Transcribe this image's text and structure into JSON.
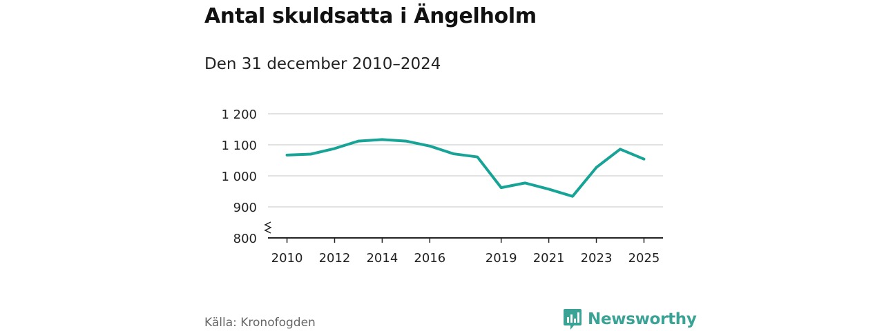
{
  "header": {
    "title": "Antal skuldsatta i Ängelholm",
    "subtitle": "Den 31 december 2010–2024"
  },
  "footer": {
    "source": "Källa: Kronofogden",
    "brand": "Newsworthy"
  },
  "colors": {
    "line": "#17a396",
    "grid": "#d9d9d9",
    "axis": "#222222",
    "brand": "#3aa396"
  },
  "chart_data": {
    "type": "line",
    "title": "Antal skuldsatta i Ängelholm",
    "subtitle": "Den 31 december 2010–2024",
    "xlabel": "",
    "ylabel": "",
    "x": [
      2010,
      2011,
      2012,
      2013,
      2014,
      2015,
      2016,
      2017,
      2018,
      2019,
      2020,
      2021,
      2022,
      2023,
      2024,
      2025
    ],
    "series": [
      {
        "name": "Antal skuldsatta",
        "values": [
          1067,
          1070,
          1088,
          1112,
          1117,
          1112,
          1096,
          1071,
          1061,
          962,
          977,
          957,
          934,
          1027,
          1086,
          1054
        ]
      }
    ],
    "xticks": [
      2010,
      2012,
      2014,
      2016,
      2019,
      2021,
      2023,
      2025
    ],
    "xtick_labels": [
      "2010",
      "2012",
      "2014",
      "2016",
      "2019",
      "2021",
      "2023",
      "2025"
    ],
    "yticks": [
      800,
      900,
      1000,
      1100,
      1200
    ],
    "ytick_labels": [
      "800",
      "900",
      "1 000",
      "1 100",
      "1 200"
    ],
    "ylim": [
      800,
      1200
    ],
    "xlim": [
      2009.2,
      2025.8
    ],
    "grid": true,
    "axis_break": true
  }
}
